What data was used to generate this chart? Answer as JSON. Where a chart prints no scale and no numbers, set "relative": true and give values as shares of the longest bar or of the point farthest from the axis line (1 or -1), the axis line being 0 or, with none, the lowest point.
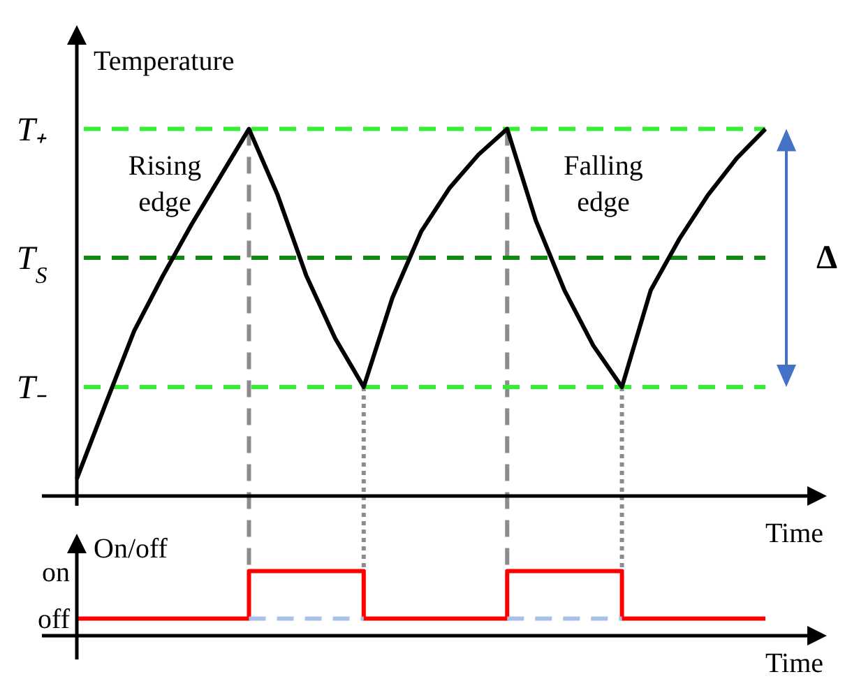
{
  "chart_data": [
    {
      "type": "line",
      "relative": true,
      "ylabel": "Temperature",
      "xlabel": "Time",
      "categories": [
        null,
        null,
        null,
        null,
        null,
        null,
        null,
        null,
        null,
        null,
        null,
        null,
        null,
        null,
        null,
        null,
        null,
        null,
        null,
        null,
        null,
        null,
        null,
        null,
        null
      ],
      "series": [
        {
          "color": "#000000",
          "values": [
            0.047,
            0.25,
            0.45,
            0.6,
            0.74,
            0.87,
            1.0,
            0.82,
            0.6,
            0.43,
            0.297,
            0.54,
            0.72,
            0.84,
            0.93,
            1.0,
            0.75,
            0.56,
            0.41,
            0.297,
            0.56,
            0.7,
            0.82,
            0.92,
            1.0
          ]
        }
      ],
      "ref_lines": [
        {
          "axis": "y",
          "value": 1.0,
          "label": "T₊",
          "color": "#33ee33",
          "line_style": "dashed"
        },
        {
          "axis": "y",
          "value": 0.649,
          "label": "T$_{S}$",
          "color": "#118811",
          "line_style": "dashed"
        },
        {
          "axis": "y",
          "value": 0.297,
          "label": "T₋",
          "color": "#33ee33",
          "line_style": "dashed"
        }
      ],
      "annotations": [
        "Rising edge",
        "Falling edge",
        "Δ"
      ]
    },
    {
      "type": "step",
      "relative": true,
      "ylabel": "On/off",
      "xlabel": "Time",
      "categories": [
        null,
        null,
        null,
        null,
        null,
        null,
        null,
        null,
        null,
        null,
        null,
        null,
        null,
        null,
        null,
        null,
        null,
        null,
        null,
        null,
        null,
        null,
        null,
        null,
        null
      ],
      "series": [
        {
          "color": "#ff0000",
          "values": [
            0.266,
            0.266,
            0.266,
            0.266,
            0.266,
            0.266,
            1,
            1,
            1,
            1,
            0.266,
            0.266,
            0.266,
            0.266,
            0.266,
            1,
            1,
            1,
            1,
            0.266,
            0.266,
            0.266,
            0.266,
            0.266,
            0.266
          ]
        },
        {
          "type": "line",
          "color": "#a9c0e6",
          "line_style": "dashed",
          "values": [
            null,
            null,
            null,
            null,
            null,
            null,
            0.266,
            0.266,
            0.266,
            0.266,
            0.266,
            null,
            null,
            null,
            null,
            0.266,
            0.266,
            0.266,
            0.266,
            0.266,
            null,
            null,
            null,
            null,
            null
          ]
        }
      ],
      "annotations": [
        "on",
        "off"
      ]
    }
  ]
}
